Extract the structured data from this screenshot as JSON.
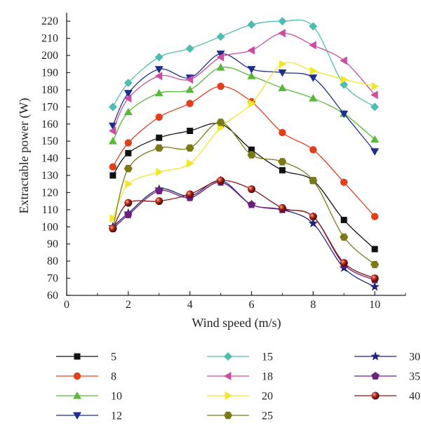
{
  "chart_data": {
    "type": "line",
    "xlabel": "Wind speed (m/s)",
    "ylabel": "Extractable power (W)",
    "xlim": [
      0,
      11
    ],
    "ylim": [
      60,
      225
    ],
    "xticks": [
      0,
      2,
      4,
      6,
      8,
      10
    ],
    "yticks": [
      60,
      70,
      80,
      90,
      100,
      110,
      120,
      130,
      140,
      150,
      160,
      170,
      180,
      190,
      200,
      210,
      220
    ],
    "x": [
      1.5,
      2,
      3,
      4,
      5,
      6,
      7,
      8,
      9,
      10
    ],
    "legend_position": "bottom",
    "series": [
      {
        "name": "5",
        "color": "#111111",
        "marker": "square",
        "values": [
          130,
          143,
          152,
          156,
          160,
          145,
          133,
          127,
          104,
          87
        ]
      },
      {
        "name": "8",
        "color": "#e2401c",
        "marker": "circle",
        "values": [
          135,
          149,
          164,
          172,
          182,
          173,
          155,
          145,
          126,
          106
        ]
      },
      {
        "name": "10",
        "color": "#5ab839",
        "marker": "triangle-up",
        "values": [
          150,
          167,
          178,
          180,
          193,
          188,
          181,
          175,
          166,
          151
        ]
      },
      {
        "name": "12",
        "color": "#1f2e8c",
        "marker": "triangle-down",
        "values": [
          159,
          178,
          192,
          187,
          201,
          192,
          190,
          187,
          166,
          144
        ]
      },
      {
        "name": "15",
        "color": "#4fbcb0",
        "marker": "diamond",
        "values": [
          170,
          184,
          199,
          204,
          211,
          218,
          220,
          217,
          183,
          170
        ]
      },
      {
        "name": "18",
        "color": "#c94ea0",
        "marker": "triangle-left",
        "values": [
          156,
          175,
          188,
          186,
          199,
          203,
          213,
          206,
          197,
          177
        ]
      },
      {
        "name": "20",
        "color": "#f2e62b",
        "marker": "triangle-right",
        "values": [
          105,
          125,
          132,
          137,
          158,
          172,
          195,
          191,
          186,
          182
        ]
      },
      {
        "name": "25",
        "color": "#7a7a17",
        "marker": "hexagon",
        "values": [
          99,
          134,
          146,
          146,
          161,
          142,
          138,
          127,
          94,
          78
        ]
      },
      {
        "name": "30",
        "color": "#22237a",
        "marker": "star",
        "values": [
          100,
          108,
          122,
          118,
          127,
          113,
          110,
          102,
          76,
          65
        ]
      },
      {
        "name": "35",
        "color": "#6c1f7c",
        "marker": "pentagon",
        "values": [
          99,
          107,
          121,
          117,
          126,
          113,
          110,
          106,
          78,
          69
        ]
      },
      {
        "name": "40",
        "color": "#8a1010",
        "marker": "ball",
        "values": [
          99,
          114,
          115,
          119,
          127,
          122,
          111,
          106,
          79,
          70
        ]
      }
    ]
  }
}
